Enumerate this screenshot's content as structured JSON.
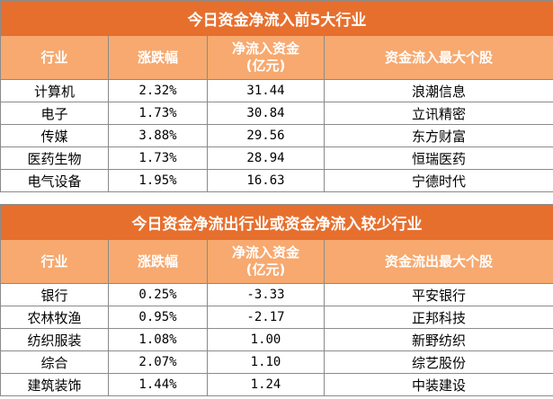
{
  "table1": {
    "title": "今日资金净流入前5大行业",
    "headers": [
      "行业",
      "涨跌幅",
      "净流入资金",
      "(亿元)",
      "资金流入最大个股"
    ],
    "rows": [
      {
        "industry": "计算机",
        "change": "2.32%",
        "flow": "31.44",
        "stock": "浪潮信息"
      },
      {
        "industry": "电子",
        "change": "1.73%",
        "flow": "30.84",
        "stock": "立讯精密"
      },
      {
        "industry": "传媒",
        "change": "3.88%",
        "flow": "29.56",
        "stock": "东方财富"
      },
      {
        "industry": "医药生物",
        "change": "1.73%",
        "flow": "28.94",
        "stock": "恒瑞医药"
      },
      {
        "industry": "电气设备",
        "change": "1.95%",
        "flow": "16.63",
        "stock": "宁德时代"
      }
    ]
  },
  "table2": {
    "title": "今日资金净流出行业或资金净流入较少行业",
    "headers": [
      "行业",
      "涨跌幅",
      "净流入资金",
      "(亿元)",
      "资金流出最大个股"
    ],
    "rows": [
      {
        "industry": "银行",
        "change": "0.25%",
        "flow": "-3.33",
        "stock": "平安银行"
      },
      {
        "industry": "农林牧渔",
        "change": "0.95%",
        "flow": "-2.17",
        "stock": "正邦科技"
      },
      {
        "industry": "纺织服装",
        "change": "1.08%",
        "flow": "1.00",
        "stock": "新野纺织"
      },
      {
        "industry": "综合",
        "change": "2.07%",
        "flow": "1.10",
        "stock": "综艺股份"
      },
      {
        "industry": "建筑装饰",
        "change": "1.44%",
        "flow": "1.24",
        "stock": "中装建设"
      }
    ]
  },
  "colors": {
    "title_bg": "#e76f2e",
    "header_bg": "#f7a96f",
    "text_light": "#ffffff"
  }
}
